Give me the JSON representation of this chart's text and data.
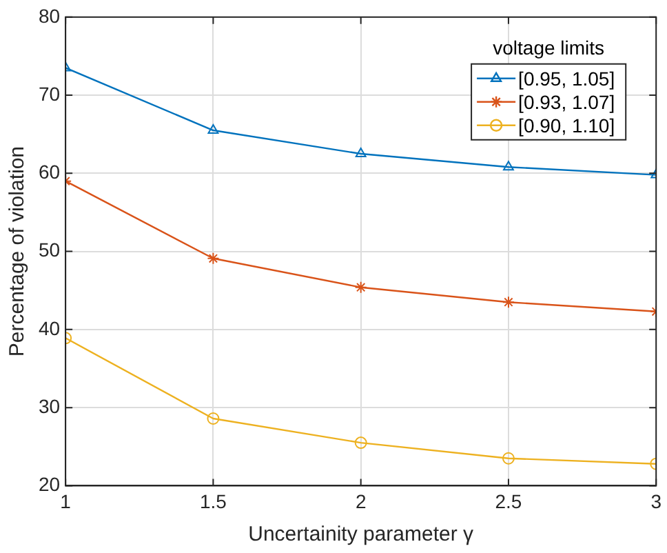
{
  "chart_data": {
    "type": "line",
    "xlabel": "Uncertainity parameter γ",
    "ylabel": "Percentage of violation",
    "legend_title": "voltage limits",
    "x": [
      1,
      1.5,
      2,
      2.5,
      3
    ],
    "xlim": [
      1,
      3
    ],
    "xticks": [
      1,
      1.5,
      2,
      2.5,
      3
    ],
    "ylim": [
      20,
      80
    ],
    "yticks": [
      20,
      30,
      40,
      50,
      60,
      70,
      80
    ],
    "grid": true,
    "legend": "top right",
    "line_style": "solid",
    "series": [
      {
        "name": "[0.95, 1.05]",
        "color": "#0072bd",
        "marker": "triangle",
        "values": [
          73.5,
          65.5,
          62.5,
          60.8,
          59.8
        ]
      },
      {
        "name": "[0.93, 1.07]",
        "color": "#d95319",
        "marker": "cross",
        "values": [
          59.0,
          49.1,
          45.4,
          43.5,
          42.3
        ]
      },
      {
        "name": "[0.90, 1.10]",
        "color": "#edb120",
        "marker": "circle",
        "values": [
          38.9,
          28.6,
          25.5,
          23.5,
          22.8
        ]
      }
    ]
  }
}
